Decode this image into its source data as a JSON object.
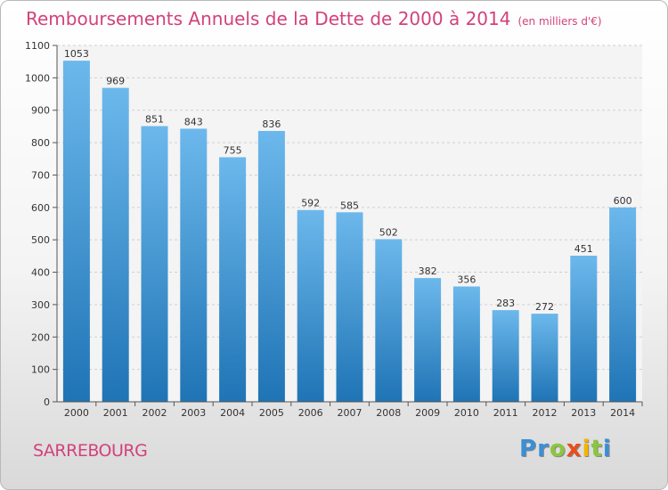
{
  "title": "Remboursements Annuels de la Dette de 2000 à 2014",
  "unit_note": "(en milliers d'€)",
  "city": "SARREBOURG",
  "brand": {
    "name": "Proxiti",
    "letters": [
      {
        "ch": "P",
        "color": "#3a8fd6"
      },
      {
        "ch": "r",
        "color": "#3a8fd6"
      },
      {
        "ch": "o",
        "color": "#8cc63f"
      },
      {
        "ch": "x",
        "color": "#e94e1b"
      },
      {
        "ch": "i",
        "color": "#f3b500"
      },
      {
        "ch": "t",
        "color": "#8cc63f"
      },
      {
        "ch": "i",
        "color": "#3a8fd6"
      }
    ]
  },
  "colors": {
    "bar_light": "#6cb8ec",
    "bar_dark": "#1f74b5",
    "title": "#d2427a"
  },
  "chart_data": {
    "type": "bar",
    "categories": [
      "2000",
      "2001",
      "2002",
      "2003",
      "2004",
      "2005",
      "2006",
      "2007",
      "2008",
      "2009",
      "2010",
      "2011",
      "2012",
      "2013",
      "2014"
    ],
    "values": [
      1053,
      969,
      851,
      843,
      755,
      836,
      592,
      585,
      502,
      382,
      356,
      283,
      272,
      451,
      600
    ],
    "yticks": [
      0,
      100,
      200,
      300,
      400,
      500,
      600,
      700,
      800,
      900,
      1000,
      1100
    ],
    "ylim": [
      0,
      1100
    ],
    "grid": true,
    "data_labels": true
  }
}
